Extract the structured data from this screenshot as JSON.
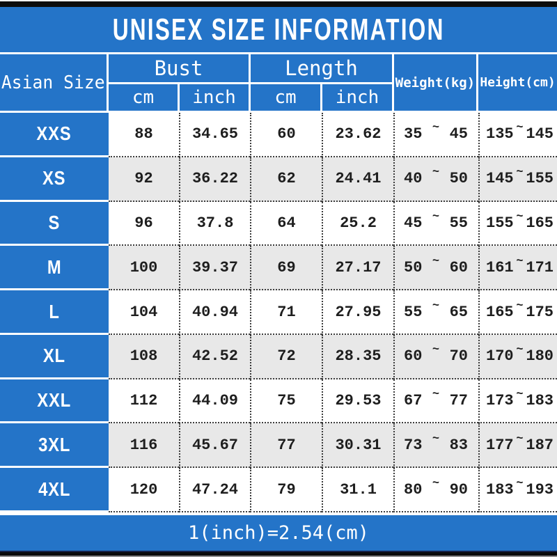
{
  "title": "UNISEX SIZE INFORMATION",
  "footer": "1(inch)=2.54(cm)",
  "colors": {
    "blue": "#2474c8",
    "alt": "#e8e8e8",
    "ink": "#1e1e1e",
    "dot": "#3b3b3b"
  },
  "table": {
    "corner_header": "Asian Size",
    "groups": [
      {
        "label": "Bust",
        "sub": [
          "cm",
          "inch"
        ]
      },
      {
        "label": "Length",
        "sub": [
          "cm",
          "inch"
        ]
      }
    ],
    "single_headers": [
      "Weight(kg)",
      "Height(cm)"
    ],
    "tilde": "~",
    "rows": [
      {
        "size": "XXS",
        "bust_cm": "88",
        "bust_inch": "34.65",
        "length_cm": "60",
        "length_inch": "23.62",
        "weight_min": "35",
        "weight_max": "45",
        "height_min": "135",
        "height_max": "145"
      },
      {
        "size": "XS",
        "bust_cm": "92",
        "bust_inch": "36.22",
        "length_cm": "62",
        "length_inch": "24.41",
        "weight_min": "40",
        "weight_max": "50",
        "height_min": "145",
        "height_max": "155"
      },
      {
        "size": "S",
        "bust_cm": "96",
        "bust_inch": "37.8",
        "length_cm": "64",
        "length_inch": "25.2",
        "weight_min": "45",
        "weight_max": "55",
        "height_min": "155",
        "height_max": "165"
      },
      {
        "size": "M",
        "bust_cm": "100",
        "bust_inch": "39.37",
        "length_cm": "69",
        "length_inch": "27.17",
        "weight_min": "50",
        "weight_max": "60",
        "height_min": "161",
        "height_max": "171"
      },
      {
        "size": "L",
        "bust_cm": "104",
        "bust_inch": "40.94",
        "length_cm": "71",
        "length_inch": "27.95",
        "weight_min": "55",
        "weight_max": "65",
        "height_min": "165",
        "height_max": "175"
      },
      {
        "size": "XL",
        "bust_cm": "108",
        "bust_inch": "42.52",
        "length_cm": "72",
        "length_inch": "28.35",
        "weight_min": "60",
        "weight_max": "70",
        "height_min": "170",
        "height_max": "180"
      },
      {
        "size": "XXL",
        "bust_cm": "112",
        "bust_inch": "44.09",
        "length_cm": "75",
        "length_inch": "29.53",
        "weight_min": "67",
        "weight_max": "77",
        "height_min": "173",
        "height_max": "183"
      },
      {
        "size": "3XL",
        "bust_cm": "116",
        "bust_inch": "45.67",
        "length_cm": "77",
        "length_inch": "30.31",
        "weight_min": "73",
        "weight_max": "83",
        "height_min": "177",
        "height_max": "187"
      },
      {
        "size": "4XL",
        "bust_cm": "120",
        "bust_inch": "47.24",
        "length_cm": "79",
        "length_inch": "31.1",
        "weight_min": "80",
        "weight_max": "90",
        "height_min": "183",
        "height_max": "193"
      }
    ]
  },
  "chart_data": {
    "type": "table",
    "title": "UNISEX SIZE INFORMATION",
    "columns": [
      "Asian Size",
      "Bust cm",
      "Bust inch",
      "Length cm",
      "Length inch",
      "Weight(kg)",
      "Height(cm)"
    ],
    "rows": [
      [
        "XXS",
        "88",
        "34.65",
        "60",
        "23.62",
        "35~45",
        "135~145"
      ],
      [
        "XS",
        "92",
        "36.22",
        "62",
        "24.41",
        "40~50",
        "145~155"
      ],
      [
        "S",
        "96",
        "37.8",
        "64",
        "25.2",
        "45~55",
        "155~165"
      ],
      [
        "M",
        "100",
        "39.37",
        "69",
        "27.17",
        "50~60",
        "161~171"
      ],
      [
        "L",
        "104",
        "40.94",
        "71",
        "27.95",
        "55~65",
        "165~175"
      ],
      [
        "XL",
        "108",
        "42.52",
        "72",
        "28.35",
        "60~70",
        "170~180"
      ],
      [
        "XXL",
        "112",
        "44.09",
        "75",
        "29.53",
        "67~77",
        "173~183"
      ],
      [
        "3XL",
        "116",
        "45.67",
        "77",
        "30.31",
        "73~83",
        "177~187"
      ],
      [
        "4XL",
        "120",
        "47.24",
        "79",
        "31.1",
        "80~90",
        "183~193"
      ]
    ],
    "note": "1(inch)=2.54(cm)"
  }
}
